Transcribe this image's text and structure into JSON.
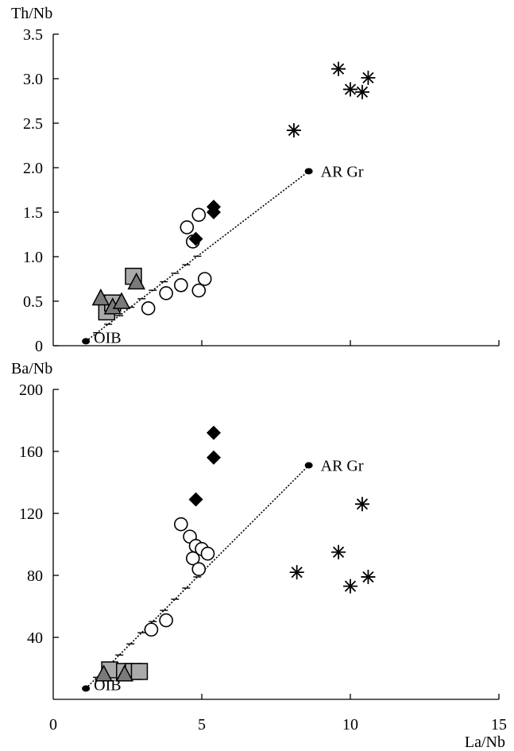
{
  "chart_data": [
    {
      "type": "scatter",
      "title": "",
      "xlabel": "",
      "ylabel": "Th/Nb",
      "xlim": [
        0,
        15
      ],
      "ylim": [
        0,
        3.5
      ],
      "yticks": [
        "0",
        "0.5",
        "1.0",
        "1.5",
        "2.0",
        "2.5",
        "3.0",
        "3.5"
      ],
      "mixing_line": {
        "from": [
          1.1,
          0.05
        ],
        "to": [
          8.6,
          1.96
        ],
        "from_label": "OIB",
        "to_label": "AR Gr"
      },
      "series": [
        {
          "marker": "open-circle",
          "points": [
            [
              3.2,
              0.42
            ],
            [
              3.8,
              0.59
            ],
            [
              4.3,
              0.68
            ],
            [
              4.5,
              1.33
            ],
            [
              4.7,
              1.17
            ],
            [
              4.9,
              1.47
            ],
            [
              4.9,
              0.62
            ],
            [
              5.1,
              0.75
            ]
          ]
        },
        {
          "marker": "filled-diamond",
          "points": [
            [
              4.8,
              1.2
            ],
            [
              5.4,
              1.5
            ],
            [
              5.4,
              1.56
            ]
          ]
        },
        {
          "marker": "gray-square",
          "points": [
            [
              1.8,
              0.38
            ],
            [
              2.0,
              0.48
            ],
            [
              2.7,
              0.78
            ]
          ]
        },
        {
          "marker": "gray-triangle",
          "points": [
            [
              1.6,
              0.53
            ],
            [
              2.0,
              0.43
            ],
            [
              2.3,
              0.49
            ],
            [
              2.8,
              0.71
            ]
          ]
        },
        {
          "marker": "asterisk",
          "points": [
            [
              8.1,
              2.42
            ],
            [
              9.6,
              3.11
            ],
            [
              10.0,
              2.88
            ],
            [
              10.4,
              2.85
            ],
            [
              10.6,
              3.01
            ]
          ]
        }
      ]
    },
    {
      "type": "scatter",
      "title": "",
      "xlabel": "La/Nb",
      "ylabel": "Ba/Nb",
      "xlim": [
        0,
        15
      ],
      "ylim": [
        0,
        200
      ],
      "xticks": [
        "0",
        "5",
        "10",
        "15"
      ],
      "yticks": [
        "40",
        "80",
        "120",
        "160",
        "200"
      ],
      "mixing_line": {
        "from": [
          1.1,
          7
        ],
        "to": [
          8.6,
          151
        ],
        "from_label": "OIB",
        "to_label": "AR Gr"
      },
      "series": [
        {
          "marker": "open-circle",
          "points": [
            [
              3.3,
              45
            ],
            [
              3.8,
              51
            ],
            [
              4.3,
              113
            ],
            [
              4.6,
              105
            ],
            [
              4.7,
              91
            ],
            [
              4.8,
              99
            ],
            [
              5.0,
              97
            ],
            [
              5.2,
              94
            ],
            [
              4.9,
              84
            ]
          ]
        },
        {
          "marker": "filled-diamond",
          "points": [
            [
              4.8,
              129
            ],
            [
              5.4,
              156
            ],
            [
              5.4,
              172
            ]
          ]
        },
        {
          "marker": "gray-square",
          "points": [
            [
              1.9,
              19
            ],
            [
              2.4,
              18
            ],
            [
              2.7,
              18
            ],
            [
              2.9,
              18
            ]
          ]
        },
        {
          "marker": "gray-triangle",
          "points": [
            [
              1.7,
              16
            ],
            [
              2.4,
              16
            ]
          ]
        },
        {
          "marker": "asterisk",
          "points": [
            [
              8.2,
              82
            ],
            [
              9.6,
              95
            ],
            [
              10.0,
              73
            ],
            [
              10.4,
              126
            ],
            [
              10.6,
              79
            ]
          ]
        }
      ]
    }
  ]
}
